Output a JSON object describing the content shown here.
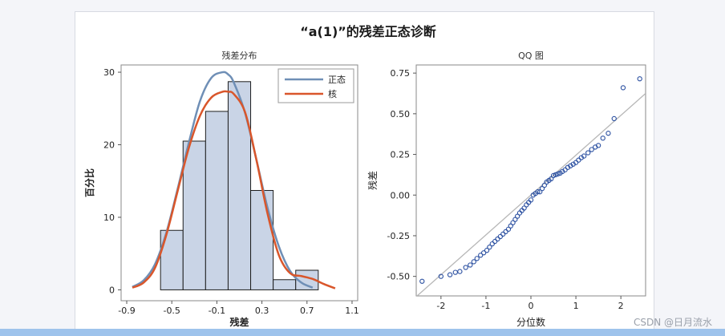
{
  "page": {
    "title": "“a(1)”的残差正态诊断",
    "watermark": "CSDN @日月流水"
  },
  "colors": {
    "normal_curve": "#6f8fb6",
    "kernel_curve": "#d9562b",
    "bar_fill": "#c9d4e6",
    "bar_stroke": "#1e1e1e",
    "qq_marker": "#2a4fa0",
    "qq_line": "#b7b7b7"
  },
  "chart_data": [
    {
      "type": "bar",
      "title": "残差分布",
      "xlabel": "残差",
      "ylabel": "百分比",
      "xlim": [
        -0.95,
        1.15
      ],
      "ylim": [
        -1.5,
        31
      ],
      "xticks": [
        -0.9,
        -0.5,
        -0.1,
        0.3,
        0.7,
        1.1
      ],
      "xtick_labels": [
        "-0.9",
        "-0.5",
        "-0.1",
        "0.3",
        "0.7",
        "1.1"
      ],
      "yticks": [
        0,
        10,
        20,
        30
      ],
      "ytick_labels": [
        "0",
        "10",
        "20",
        "30"
      ],
      "bin_width": 0.2,
      "bins": [
        {
          "center": -0.5,
          "value": 8.2
        },
        {
          "center": -0.3,
          "value": 20.5
        },
        {
          "center": -0.1,
          "value": 24.6
        },
        {
          "center": 0.1,
          "value": 28.7
        },
        {
          "center": 0.3,
          "value": 13.7
        },
        {
          "center": 0.5,
          "value": 1.4
        },
        {
          "center": 0.7,
          "value": 2.7
        }
      ],
      "legend": {
        "position": "top-right",
        "entries": [
          {
            "label": "正态",
            "color": "#6f8fb6"
          },
          {
            "label": "核",
            "color": "#d9562b"
          }
        ]
      },
      "series": [
        {
          "name": "正态",
          "x": [
            -0.85,
            -0.75,
            -0.65,
            -0.55,
            -0.45,
            -0.35,
            -0.25,
            -0.15,
            -0.05,
            0.0,
            0.05,
            0.15,
            0.25,
            0.35,
            0.45,
            0.55,
            0.65,
            0.75
          ],
          "y": [
            0.4,
            1.3,
            3.5,
            7.8,
            13.8,
            20.2,
            26.0,
            29.2,
            30.0,
            29.7,
            28.6,
            24.4,
            18.0,
            11.3,
            6.0,
            2.6,
            1.0,
            0.3
          ]
        },
        {
          "name": "核",
          "x": [
            -0.85,
            -0.75,
            -0.65,
            -0.55,
            -0.45,
            -0.35,
            -0.25,
            -0.15,
            -0.05,
            0.0,
            0.05,
            0.15,
            0.25,
            0.35,
            0.45,
            0.55,
            0.65,
            0.75,
            0.85,
            0.95
          ],
          "y": [
            0.3,
            1.0,
            3.0,
            7.5,
            13.5,
            19.5,
            24.0,
            26.5,
            27.3,
            27.3,
            27.0,
            24.5,
            18.0,
            10.5,
            4.8,
            2.3,
            1.9,
            1.5,
            0.8,
            0.2
          ]
        }
      ]
    },
    {
      "type": "scatter",
      "title": "QQ 图",
      "xlabel": "分位数",
      "ylabel": "残差",
      "xlim": [
        -2.55,
        2.55
      ],
      "ylim": [
        -0.62,
        0.8
      ],
      "xticks": [
        -2,
        -1,
        0,
        1,
        2
      ],
      "xtick_labels": [
        "-2",
        "-1",
        "0",
        "1",
        "2"
      ],
      "yticks": [
        -0.5,
        -0.25,
        0.0,
        0.25,
        0.5,
        0.75
      ],
      "ytick_labels": [
        "-0.50",
        "-0.25",
        "0.00",
        "0.25",
        "0.50",
        "0.75"
      ],
      "reference_line": {
        "intercept": 0.0,
        "slope": 0.245
      },
      "points": [
        [
          -2.42,
          -0.53
        ],
        [
          -2.0,
          -0.5
        ],
        [
          -1.8,
          -0.49
        ],
        [
          -1.68,
          -0.475
        ],
        [
          -1.58,
          -0.47
        ],
        [
          -1.45,
          -0.445
        ],
        [
          -1.35,
          -0.43
        ],
        [
          -1.27,
          -0.41
        ],
        [
          -1.2,
          -0.39
        ],
        [
          -1.12,
          -0.37
        ],
        [
          -1.05,
          -0.355
        ],
        [
          -0.98,
          -0.34
        ],
        [
          -0.92,
          -0.32
        ],
        [
          -0.86,
          -0.3
        ],
        [
          -0.8,
          -0.285
        ],
        [
          -0.74,
          -0.27
        ],
        [
          -0.68,
          -0.255
        ],
        [
          -0.62,
          -0.24
        ],
        [
          -0.56,
          -0.225
        ],
        [
          -0.5,
          -0.21
        ],
        [
          -0.45,
          -0.19
        ],
        [
          -0.4,
          -0.17
        ],
        [
          -0.35,
          -0.15
        ],
        [
          -0.3,
          -0.13
        ],
        [
          -0.25,
          -0.11
        ],
        [
          -0.2,
          -0.095
        ],
        [
          -0.15,
          -0.08
        ],
        [
          -0.1,
          -0.06
        ],
        [
          -0.05,
          -0.045
        ],
        [
          0.0,
          -0.03
        ],
        [
          0.05,
          0.0
        ],
        [
          0.1,
          0.01
        ],
        [
          0.15,
          0.02
        ],
        [
          0.2,
          0.02
        ],
        [
          0.25,
          0.04
        ],
        [
          0.3,
          0.06
        ],
        [
          0.35,
          0.08
        ],
        [
          0.4,
          0.09
        ],
        [
          0.45,
          0.1
        ],
        [
          0.5,
          0.12
        ],
        [
          0.55,
          0.125
        ],
        [
          0.6,
          0.13
        ],
        [
          0.65,
          0.135
        ],
        [
          0.7,
          0.145
        ],
        [
          0.76,
          0.155
        ],
        [
          0.82,
          0.17
        ],
        [
          0.88,
          0.18
        ],
        [
          0.94,
          0.19
        ],
        [
          1.0,
          0.2
        ],
        [
          1.06,
          0.215
        ],
        [
          1.12,
          0.23
        ],
        [
          1.18,
          0.24
        ],
        [
          1.27,
          0.26
        ],
        [
          1.35,
          0.28
        ],
        [
          1.43,
          0.295
        ],
        [
          1.5,
          0.305
        ],
        [
          1.6,
          0.35
        ],
        [
          1.72,
          0.38
        ],
        [
          1.85,
          0.47
        ],
        [
          2.05,
          0.66
        ],
        [
          2.42,
          0.715
        ]
      ]
    }
  ]
}
